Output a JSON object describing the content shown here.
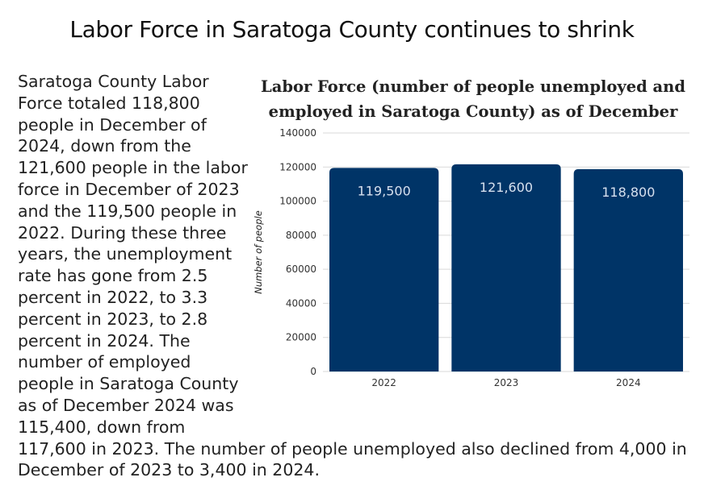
{
  "page": {
    "title": "Labor Force in Saratoga County continues to shrink",
    "paragraph": "Saratoga County Labor Force totaled 118,800 people in December of 2024, down from the 121,600 people in the labor force in December of 2023 and the 119,500 people in 2022. During these three years, the unemployment rate has gone from 2.5 percent in 2022, to 3.3 percent in 2023, to 2.8 percent in 2024. The number of employed people in Saratoga County as of December 2024 was 115,400, down from 117,600 in 2023. The number of people unemployed also declined from 4,000 in December of 2023 to 3,400 in 2024."
  },
  "chart_data": {
    "type": "bar",
    "title_lines": [
      "Labor Force (number of people unemployed and",
      "employed in Saratoga County) as of December"
    ],
    "xlabel": "",
    "ylabel": "Number of people",
    "categories": [
      "2022",
      "2023",
      "2024"
    ],
    "values": [
      119500,
      121600,
      118800
    ],
    "value_labels": [
      "119,500",
      "121,600",
      "118,800"
    ],
    "ylim": [
      0,
      140000
    ],
    "yticks": [
      0,
      20000,
      40000,
      60000,
      80000,
      100000,
      120000,
      140000
    ],
    "ytick_labels": [
      "0",
      "20000",
      "40000",
      "60000",
      "80000",
      "100000",
      "120000",
      "140000"
    ],
    "grid": true,
    "legend": "none",
    "colors": {
      "bar": "#003467",
      "bar_label": "#d6e0ee",
      "grid": "#d9d9d9"
    }
  }
}
